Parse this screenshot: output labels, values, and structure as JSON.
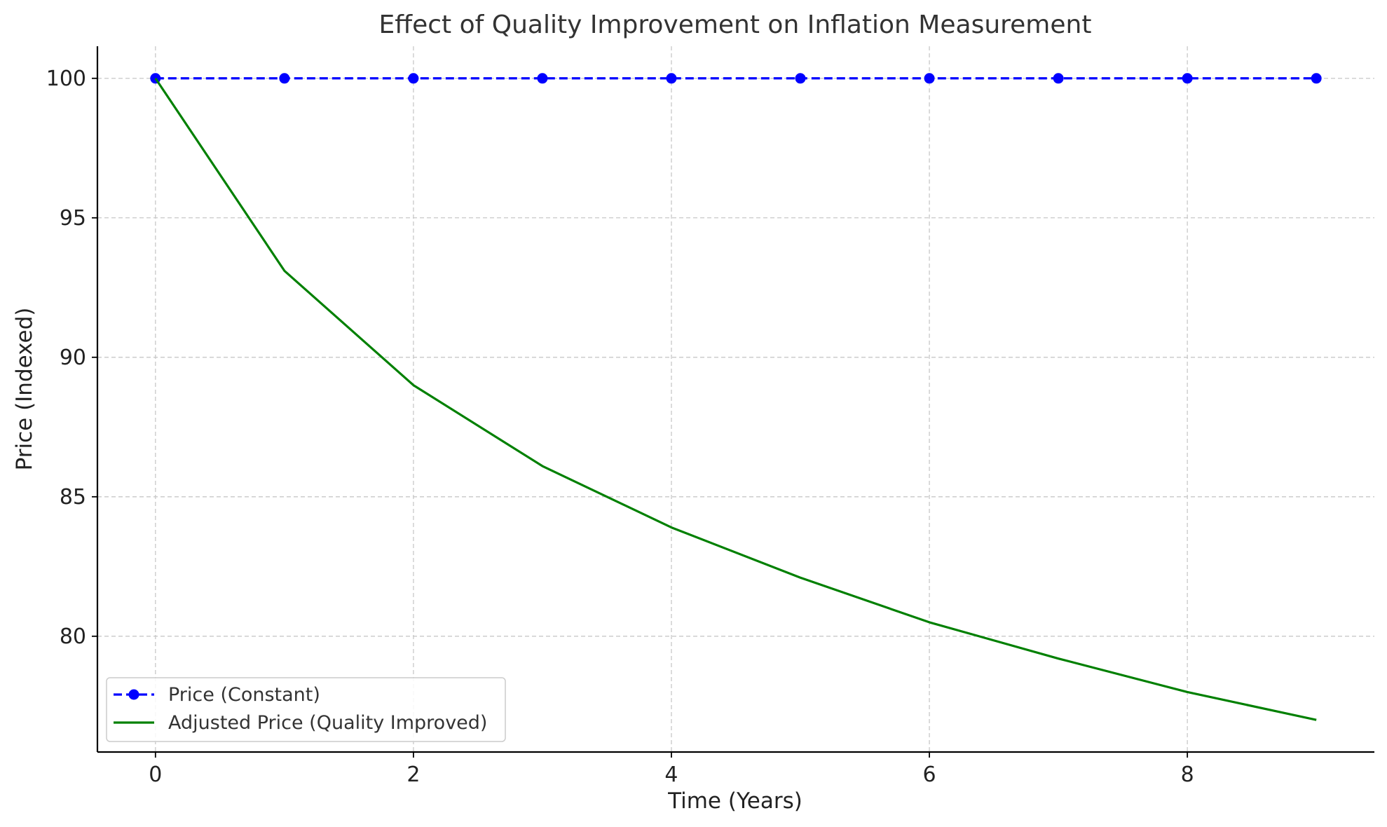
{
  "chart_data": {
    "type": "line",
    "title": "Effect of Quality Improvement on Inflation Measurement",
    "xlabel": "Time (Years)",
    "ylabel": "Price (Indexed)",
    "xlim": [
      -0.45,
      9.45
    ],
    "ylim": [
      75.85,
      101.15
    ],
    "xticks": [
      0,
      2,
      4,
      6,
      8
    ],
    "yticks": [
      80,
      85,
      90,
      95,
      100
    ],
    "grid": true,
    "legend_position": "lower-left",
    "x": [
      0,
      1,
      2,
      3,
      4,
      5,
      6,
      7,
      8,
      9
    ],
    "series": [
      {
        "name": "Price (Constant)",
        "values": [
          100,
          100,
          100,
          100,
          100,
          100,
          100,
          100,
          100,
          100
        ],
        "color": "#0000ff",
        "line_style": "dashed",
        "marker": "circle"
      },
      {
        "name": "Adjusted Price (Quality Improved)",
        "values": [
          100,
          93.1,
          89.0,
          86.1,
          83.9,
          82.1,
          80.5,
          79.2,
          78.0,
          77.0
        ],
        "color": "#008000",
        "line_style": "solid",
        "marker": "none"
      }
    ]
  }
}
